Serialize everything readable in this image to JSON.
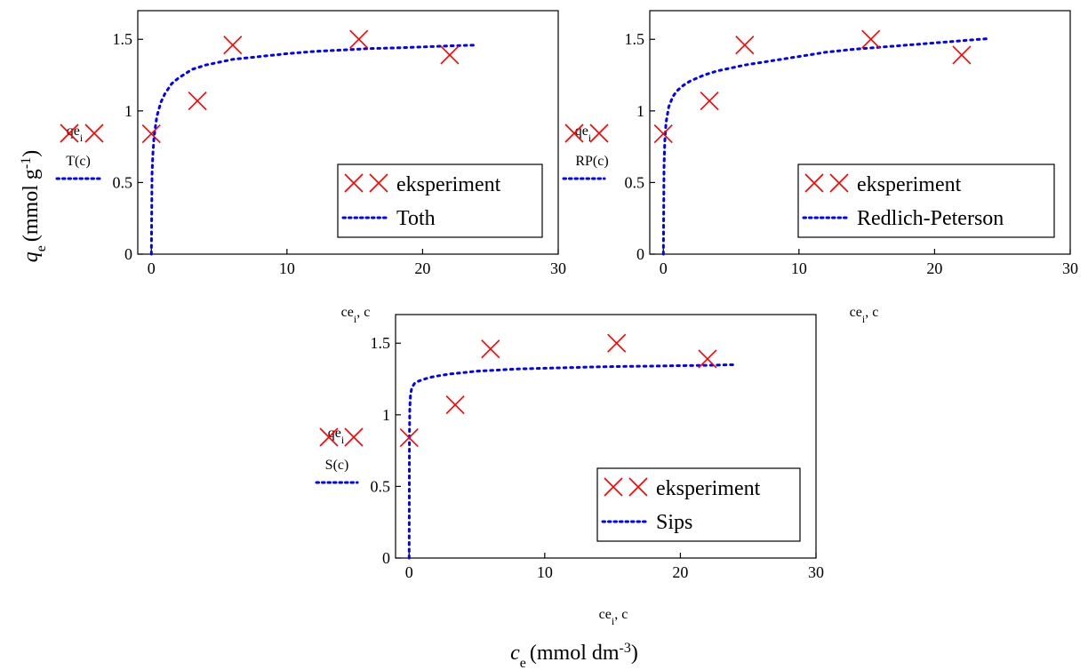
{
  "figure": {
    "ylabel_symbol": "q",
    "ylabel_subscript": "e",
    "ylabel_unit": "(mmol g",
    "ylabel_unit_sup": "-1",
    "ylabel_unit_close": ")",
    "xlabel_symbol": "c",
    "xlabel_subscript": "e",
    "xlabel_unit": "(mmol dm",
    "xlabel_unit_sup": "-3",
    "xlabel_unit_close": ")"
  },
  "colors": {
    "experiment": "#ff0000",
    "model": "#0000ff"
  },
  "chart_data": [
    {
      "type": "scatter",
      "model": "Toth",
      "xlim": [
        -1,
        30
      ],
      "ylim": [
        0,
        1.7
      ],
      "x_ticks": [
        0,
        10,
        20,
        30
      ],
      "y_ticks": [
        0,
        0.5,
        1,
        1.5
      ],
      "x_tick_labels": [
        "0",
        "10",
        "20",
        "30"
      ],
      "y_tick_labels": [
        "0",
        "0.5",
        "1",
        "1.5"
      ],
      "x_axis_label_main": "ce",
      "x_axis_label_sub": "i",
      "x_axis_label_rest": ", c",
      "y_axis_label_points_main": "qe",
      "y_axis_label_points_sub": "i",
      "y_axis_label_curve": "T(c)",
      "legend": [
        "eksperiment",
        "Toth"
      ],
      "points": {
        "x": [
          0,
          3.4,
          6,
          15.3,
          22
        ],
        "y": [
          0.84,
          1.07,
          1.46,
          1.5,
          1.39
        ]
      },
      "curve": {
        "x": [
          0,
          0.05,
          0.1,
          0.2,
          0.4,
          0.7,
          1,
          1.5,
          2,
          3,
          4,
          5,
          6,
          8,
          10,
          12,
          14,
          16,
          18,
          20,
          22,
          24
        ],
        "y": [
          0,
          0.55,
          0.68,
          0.82,
          0.96,
          1.06,
          1.12,
          1.19,
          1.23,
          1.29,
          1.32,
          1.34,
          1.36,
          1.38,
          1.4,
          1.415,
          1.425,
          1.435,
          1.44,
          1.447,
          1.454,
          1.46
        ]
      }
    },
    {
      "type": "scatter",
      "model": "Redlich-Peterson",
      "xlim": [
        -1,
        30
      ],
      "ylim": [
        0,
        1.7
      ],
      "x_ticks": [
        0,
        10,
        20,
        30
      ],
      "y_ticks": [
        0,
        0.5,
        1,
        1.5
      ],
      "x_tick_labels": [
        "0",
        "10",
        "20",
        "30"
      ],
      "y_tick_labels": [
        "0",
        "0.5",
        "1",
        "1.5"
      ],
      "x_axis_label_main": "ce",
      "x_axis_label_sub": "i",
      "x_axis_label_rest": ", c",
      "y_axis_label_points_main": "qe",
      "y_axis_label_points_sub": "i",
      "y_axis_label_curve": "RP(c)",
      "legend": [
        "eksperiment",
        "Redlich-Peterson"
      ],
      "points": {
        "x": [
          0,
          3.4,
          6,
          15.3,
          22
        ],
        "y": [
          0.84,
          1.07,
          1.46,
          1.5,
          1.39
        ]
      },
      "curve": {
        "x": [
          0,
          0.05,
          0.1,
          0.2,
          0.4,
          0.7,
          1,
          1.5,
          2,
          3,
          4,
          5,
          6,
          8,
          10,
          12,
          14,
          16,
          18,
          20,
          22,
          24
        ],
        "y": [
          0,
          0.6,
          0.78,
          0.92,
          1.03,
          1.1,
          1.14,
          1.18,
          1.21,
          1.25,
          1.28,
          1.3,
          1.32,
          1.35,
          1.38,
          1.41,
          1.43,
          1.445,
          1.46,
          1.475,
          1.49,
          1.505
        ]
      }
    },
    {
      "type": "scatter",
      "model": "Sips",
      "xlim": [
        -1,
        30
      ],
      "ylim": [
        0,
        1.7
      ],
      "x_ticks": [
        0,
        10,
        20,
        30
      ],
      "y_ticks": [
        0,
        0.5,
        1,
        1.5
      ],
      "x_tick_labels": [
        "0",
        "10",
        "20",
        "30"
      ],
      "y_tick_labels": [
        "0",
        "0.5",
        "1",
        "1.5"
      ],
      "x_axis_label_main": "ce",
      "x_axis_label_sub": "i",
      "x_axis_label_rest": ", c",
      "y_axis_label_points_main": "qe",
      "y_axis_label_points_sub": "i",
      "y_axis_label_curve": "S(c)",
      "legend": [
        "eksperiment",
        "Sips"
      ],
      "points": {
        "x": [
          0,
          3.4,
          6,
          15.3,
          22
        ],
        "y": [
          0.84,
          1.07,
          1.46,
          1.5,
          1.39
        ]
      },
      "curve": {
        "x": [
          0,
          0.02,
          0.05,
          0.1,
          0.2,
          0.4,
          0.7,
          1,
          1.5,
          2,
          3,
          4,
          5,
          6,
          8,
          10,
          12,
          14,
          16,
          18,
          20,
          22,
          24
        ],
        "y": [
          0,
          0.85,
          1.05,
          1.14,
          1.19,
          1.22,
          1.235,
          1.245,
          1.26,
          1.27,
          1.285,
          1.295,
          1.305,
          1.31,
          1.32,
          1.325,
          1.33,
          1.335,
          1.338,
          1.34,
          1.343,
          1.346,
          1.35
        ]
      }
    }
  ]
}
